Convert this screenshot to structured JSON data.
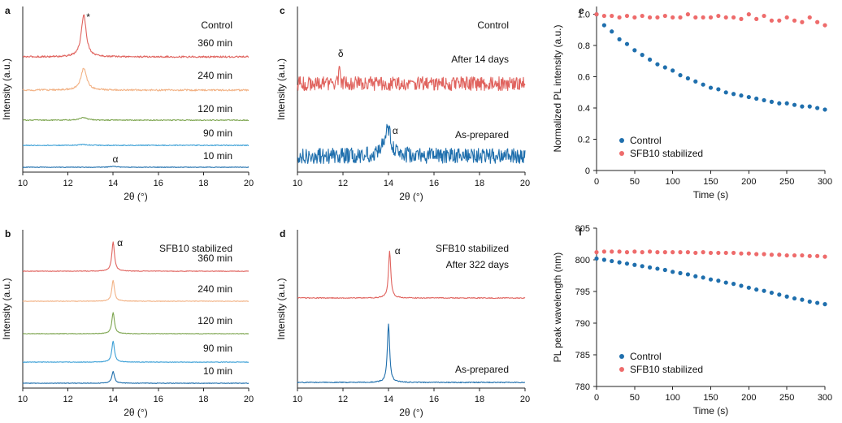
{
  "chart_data": [
    {
      "id": "a",
      "panel_label": "a",
      "type": "line",
      "title": "Control",
      "xlabel": "2θ (°)",
      "ylabel": "Intensity (a.u.)",
      "xlim": [
        10,
        20
      ],
      "xticks": [
        10,
        12,
        14,
        16,
        18,
        20
      ],
      "series": [
        {
          "name": "360 min",
          "color": "#e0635e",
          "peak_x": 12.7,
          "peak_height": 1.0,
          "peak_width": 0.13,
          "noise": 0.02
        },
        {
          "name": "240 min",
          "color": "#f2b285",
          "peak_x": 12.7,
          "peak_height": 0.52,
          "peak_width": 0.15,
          "noise": 0.02
        },
        {
          "name": "120 min",
          "color": "#7da54f",
          "peak_x": 12.7,
          "peak_height": 0.06,
          "peak_width": 0.2,
          "noise": 0.012
        },
        {
          "name": "90 min",
          "color": "#3a9fd6",
          "peak_x": 12.7,
          "peak_height": 0.02,
          "peak_width": 0.2,
          "noise": 0.01
        },
        {
          "name": "10 min",
          "color": "#1f6fad",
          "peak_x": 14.0,
          "peak_height": 0.02,
          "peak_width": 0.2,
          "noise": 0.008
        }
      ],
      "annotations": [
        {
          "text": "*",
          "x": 12.9
        },
        {
          "text": "α",
          "x": 14.1
        }
      ]
    },
    {
      "id": "b",
      "panel_label": "b",
      "type": "line",
      "title": "SFB10 stabilized",
      "xlabel": "2θ (°)",
      "ylabel": "Intensity (a.u.)",
      "xlim": [
        10,
        20
      ],
      "xticks": [
        10,
        12,
        14,
        16,
        18,
        20
      ],
      "series": [
        {
          "name": "360 min",
          "color": "#e0635e",
          "peak_x": 14.0,
          "peak_height": 1.0,
          "peak_width": 0.07,
          "noise": 0.01
        },
        {
          "name": "240 min",
          "color": "#f2b285",
          "peak_x": 14.0,
          "peak_height": 0.72,
          "peak_width": 0.07,
          "noise": 0.01
        },
        {
          "name": "120 min",
          "color": "#7da54f",
          "peak_x": 14.0,
          "peak_height": 0.72,
          "peak_width": 0.07,
          "noise": 0.01
        },
        {
          "name": "90 min",
          "color": "#3a9fd6",
          "peak_x": 14.0,
          "peak_height": 0.72,
          "peak_width": 0.07,
          "noise": 0.01
        },
        {
          "name": "10 min",
          "color": "#1f6fad",
          "peak_x": 14.0,
          "peak_height": 0.4,
          "peak_width": 0.07,
          "noise": 0.01
        }
      ],
      "annotations": [
        {
          "text": "α",
          "x": 14.3
        }
      ]
    },
    {
      "id": "c",
      "panel_label": "c",
      "type": "line",
      "title": "Control",
      "xlabel": "2θ (°)",
      "ylabel": "Intensity (a.u.)",
      "xlim": [
        10,
        20
      ],
      "xticks": [
        10,
        12,
        14,
        16,
        18,
        20
      ],
      "series": [
        {
          "name": "After 14 days",
          "color": "#e0635e",
          "peak_x": 11.85,
          "peak_height": 0.35,
          "peak_width": 0.04,
          "noise": 0.18
        },
        {
          "name": "As-prepared",
          "color": "#1f6fad",
          "peak_x": 13.95,
          "peak_height": 0.75,
          "peak_width": 0.18,
          "noise": 0.2
        }
      ],
      "annotations": [
        {
          "text": "δ",
          "x": 11.9
        },
        {
          "text": "α",
          "x": 14.3
        }
      ]
    },
    {
      "id": "d",
      "panel_label": "d",
      "type": "line",
      "title": "SFB10 stabilized",
      "xlabel": "2θ (°)",
      "ylabel": "Intensity (a.u.)",
      "xlim": [
        10,
        20
      ],
      "xticks": [
        10,
        12,
        14,
        16,
        18,
        20
      ],
      "series": [
        {
          "name": "After 322 days",
          "color": "#e0635e",
          "peak_x": 14.05,
          "peak_height": 1.0,
          "peak_width": 0.06,
          "noise": 0.01
        },
        {
          "name": "As-prepared",
          "color": "#1f6fad",
          "peak_x": 14.0,
          "peak_height": 1.25,
          "peak_width": 0.06,
          "noise": 0.01
        }
      ],
      "annotations": [
        {
          "text": "α",
          "x": 14.4
        }
      ]
    },
    {
      "id": "e",
      "panel_label": "e",
      "type": "scatter",
      "title": "",
      "xlabel": "Time (s)",
      "ylabel": "Normalized PL intensity (a.u.)",
      "xlim": [
        0,
        300
      ],
      "ylim": [
        0,
        1.05
      ],
      "xticks": [
        0,
        50,
        100,
        150,
        200,
        250,
        300
      ],
      "yticks": [
        "0",
        "0.2",
        "0.4",
        "0.6",
        "0.8",
        "1.0"
      ],
      "legend": "bottom-left",
      "x": [
        0,
        10,
        20,
        30,
        40,
        50,
        60,
        70,
        80,
        90,
        100,
        110,
        120,
        130,
        140,
        150,
        160,
        170,
        180,
        190,
        200,
        210,
        220,
        230,
        240,
        250,
        260,
        270,
        280,
        290,
        300
      ],
      "series": [
        {
          "name": "Control",
          "color": "#1f6fad",
          "values": [
            1.0,
            0.93,
            0.89,
            0.84,
            0.81,
            0.77,
            0.74,
            0.71,
            0.68,
            0.66,
            0.64,
            0.61,
            0.59,
            0.57,
            0.55,
            0.53,
            0.52,
            0.5,
            0.49,
            0.48,
            0.47,
            0.46,
            0.45,
            0.44,
            0.43,
            0.43,
            0.42,
            0.41,
            0.41,
            0.4,
            0.39
          ]
        },
        {
          "name": "SFB10 stabilized",
          "color": "#ee6b6b",
          "values": [
            1.0,
            0.99,
            0.99,
            0.98,
            0.99,
            0.98,
            0.99,
            0.98,
            0.98,
            0.99,
            0.98,
            0.98,
            1.0,
            0.98,
            0.98,
            0.98,
            0.99,
            0.98,
            0.98,
            0.97,
            1.0,
            0.97,
            0.99,
            0.96,
            0.96,
            0.98,
            0.96,
            0.95,
            0.98,
            0.95,
            0.93
          ]
        }
      ]
    },
    {
      "id": "f",
      "panel_label": "f",
      "type": "scatter",
      "title": "",
      "xlabel": "Time (s)",
      "ylabel": "PL peak wavelength (nm)",
      "xlim": [
        0,
        300
      ],
      "ylim": [
        780,
        805
      ],
      "xticks": [
        0,
        50,
        100,
        150,
        200,
        250,
        300
      ],
      "yticks": [
        "780",
        "785",
        "790",
        "795",
        "800",
        "805"
      ],
      "legend": "bottom-left",
      "x": [
        0,
        10,
        20,
        30,
        40,
        50,
        60,
        70,
        80,
        90,
        100,
        110,
        120,
        130,
        140,
        150,
        160,
        170,
        180,
        190,
        200,
        210,
        220,
        230,
        240,
        250,
        260,
        270,
        280,
        290,
        300
      ],
      "series": [
        {
          "name": "Control",
          "color": "#1f6fad",
          "values": [
            800.2,
            800.0,
            799.8,
            799.6,
            799.4,
            799.2,
            799.0,
            798.8,
            798.6,
            798.4,
            798.1,
            797.9,
            797.7,
            797.4,
            797.2,
            796.9,
            796.7,
            796.4,
            796.2,
            795.9,
            795.6,
            795.3,
            795.1,
            794.8,
            794.5,
            794.2,
            793.9,
            793.7,
            793.4,
            793.2,
            793.0
          ]
        },
        {
          "name": "SFB10 stabilized",
          "color": "#ee6b6b",
          "values": [
            801.2,
            801.3,
            801.3,
            801.3,
            801.2,
            801.3,
            801.2,
            801.3,
            801.2,
            801.2,
            801.2,
            801.2,
            801.2,
            801.1,
            801.2,
            801.1,
            801.1,
            801.1,
            801.1,
            801.0,
            801.0,
            800.9,
            800.9,
            800.8,
            800.8,
            800.7,
            800.7,
            800.7,
            800.6,
            800.6,
            800.5
          ]
        }
      ]
    }
  ]
}
